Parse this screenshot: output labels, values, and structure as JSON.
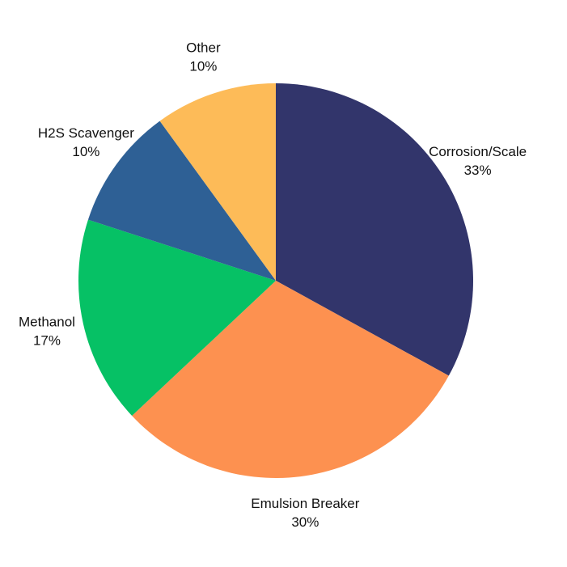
{
  "chart_data": {
    "type": "pie",
    "categories": [
      "Corrosion/Scale",
      "Emulsion Breaker",
      "Methanol",
      "H2S Scavenger",
      "Other"
    ],
    "values": [
      33,
      30,
      17,
      10,
      10
    ],
    "value_labels": [
      "33%",
      "30%",
      "17%",
      "10%",
      "10%"
    ],
    "colors": [
      "#32356b",
      "#fd9150",
      "#06c165",
      "#2e6095",
      "#fdbb58"
    ]
  }
}
